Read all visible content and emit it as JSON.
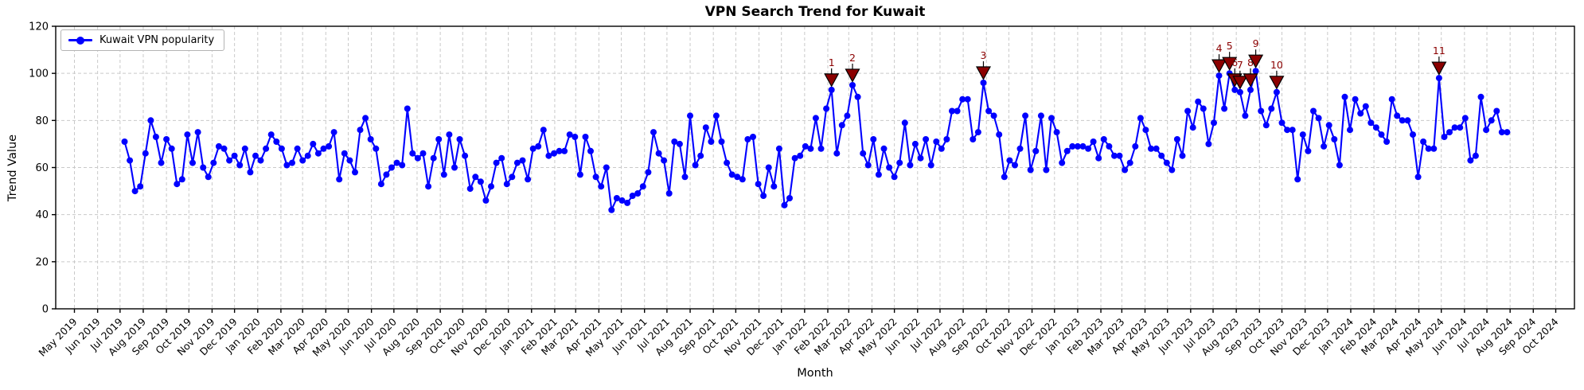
{
  "figure": {
    "title": "VPN Search Trend for Kuwait"
  },
  "legend": {
    "label": "Kuwait VPN popularity"
  },
  "axes": {
    "x_label": "Month",
    "y_label": "Trend Value"
  },
  "chart_data": {
    "type": "line",
    "series": [
      {
        "name": "Kuwait VPN popularity",
        "start_date": "2019-07-07",
        "interval_days": 7,
        "values": [
          71,
          63,
          50,
          52,
          66,
          80,
          73,
          62,
          72,
          68,
          53,
          55,
          74,
          62,
          75,
          60,
          56,
          62,
          69,
          68,
          63,
          65,
          61,
          68,
          58,
          65,
          63,
          68,
          74,
          71,
          68,
          61,
          62,
          68,
          63,
          65,
          70,
          66,
          68,
          69,
          75,
          55,
          66,
          63,
          58,
          76,
          81,
          72,
          68,
          53,
          57,
          60,
          62,
          61,
          85,
          66,
          64,
          66,
          52,
          64,
          72,
          57,
          74,
          60,
          72,
          65,
          51,
          56,
          54,
          46,
          52,
          62,
          64,
          53,
          56,
          62,
          63,
          55,
          68,
          69,
          76,
          65,
          66,
          67,
          67,
          74,
          73,
          57,
          73,
          67,
          56,
          52,
          60,
          42,
          47,
          46,
          45,
          48,
          49,
          52,
          58,
          75,
          66,
          63,
          49,
          71,
          70,
          56,
          82,
          61,
          65,
          77,
          71,
          82,
          71,
          62,
          57,
          56,
          55,
          72,
          73,
          53,
          48,
          60,
          52,
          68,
          44,
          47,
          64,
          65,
          69,
          68,
          81,
          68,
          85,
          93,
          66,
          78,
          82,
          95,
          90,
          66,
          61,
          72,
          57,
          68,
          60,
          56,
          62,
          79,
          61,
          70,
          64,
          72,
          61,
          71,
          68,
          72,
          84,
          84,
          89,
          89,
          72,
          75,
          96,
          84,
          82,
          74,
          56,
          63,
          61,
          68,
          82,
          59,
          67,
          82,
          59,
          81,
          75,
          62,
          67,
          69,
          69,
          69,
          68,
          71,
          64,
          72,
          69,
          65,
          65,
          59,
          62,
          69,
          81,
          76,
          68,
          68,
          65,
          62,
          59,
          72,
          65,
          84,
          77,
          88,
          85,
          70,
          79,
          99,
          85,
          100,
          93,
          92,
          82,
          93,
          101,
          84,
          78,
          85,
          92,
          79,
          76,
          76,
          55,
          74,
          67,
          84,
          81,
          69,
          78,
          72,
          61,
          90,
          76,
          89,
          83,
          86,
          79,
          77,
          74,
          71,
          89,
          82,
          80,
          80,
          74,
          56,
          71,
          68,
          68,
          98,
          73,
          75,
          77,
          77,
          81,
          63,
          65,
          90,
          76,
          80,
          84,
          75,
          75
        ]
      }
    ],
    "annotations": [
      {
        "label": "1",
        "index": 135,
        "value": 93
      },
      {
        "label": "2",
        "index": 139,
        "value": 95
      },
      {
        "label": "3",
        "index": 164,
        "value": 96
      },
      {
        "label": "4",
        "index": 209,
        "value": 99
      },
      {
        "label": "5",
        "index": 211,
        "value": 100
      },
      {
        "label": "6",
        "index": 212,
        "value": 93
      },
      {
        "label": "7",
        "index": 213,
        "value": 92
      },
      {
        "label": "8",
        "index": 215,
        "value": 93
      },
      {
        "label": "9",
        "index": 216,
        "value": 101
      },
      {
        "label": "10",
        "index": 220,
        "value": 92
      },
      {
        "label": "11",
        "index": 251,
        "value": 98
      }
    ],
    "title": "VPN Search Trend for Kuwait",
    "xlabel": "Month",
    "ylabel": "Trend Value",
    "ylim": [
      0,
      120
    ],
    "y_ticks": [
      0,
      20,
      40,
      60,
      80,
      100,
      120
    ],
    "x_axis_range": [
      "2019-04-06",
      "2024-10-26"
    ],
    "x_tick_labels": [
      "May 2019",
      "Jun 2019",
      "Jul 2019",
      "Aug 2019",
      "Sep 2019",
      "Oct 2019",
      "Nov 2019",
      "Dec 2019",
      "Jan 2020",
      "Feb 2020",
      "Mar 2020",
      "Apr 2020",
      "May 2020",
      "Jun 2020",
      "Jul 2020",
      "Aug 2020",
      "Sep 2020",
      "Oct 2020",
      "Nov 2020",
      "Dec 2020",
      "Jan 2021",
      "Feb 2021",
      "Mar 2021",
      "Apr 2021",
      "May 2021",
      "Jun 2021",
      "Jul 2021",
      "Aug 2021",
      "Sep 2021",
      "Oct 2021",
      "Nov 2021",
      "Dec 2021",
      "Jan 2022",
      "Feb 2022",
      "Mar 2022",
      "Apr 2022",
      "May 2022",
      "Jun 2022",
      "Jul 2022",
      "Aug 2022",
      "Sep 2022",
      "Oct 2022",
      "Nov 2022",
      "Dec 2022",
      "Jan 2023",
      "Feb 2023",
      "Mar 2023",
      "Apr 2023",
      "May 2023",
      "Jun 2023",
      "Jul 2023",
      "Aug 2023",
      "Sep 2023",
      "Oct 2023",
      "Nov 2023",
      "Dec 2023",
      "Jan 2024",
      "Feb 2024",
      "Mar 2024",
      "Apr 2024",
      "May 2024",
      "Jun 2024",
      "Jul 2024",
      "Aug 2024",
      "Sep 2024",
      "Oct 2024"
    ],
    "grid": true,
    "legend_position": "upper-left",
    "colors": {
      "line": "#0000ff",
      "marker": "#0000ff",
      "annotation_marker": "#8b0000",
      "annotation_text": "#8b0000",
      "grid": "#c9c9c9",
      "spine": "#000000",
      "tick_text": "#000000"
    }
  }
}
